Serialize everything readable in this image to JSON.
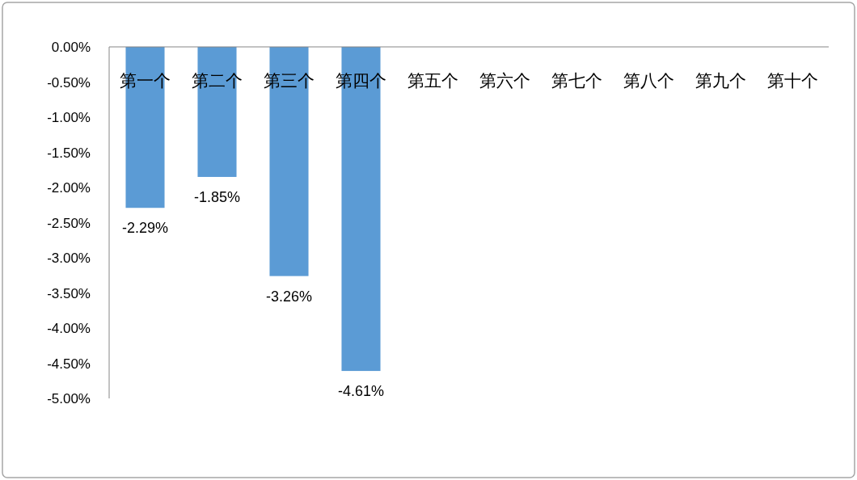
{
  "chart_data": {
    "type": "bar",
    "categories": [
      "第一个",
      "第二个",
      "第三个",
      "第四个",
      "第五个",
      "第六个",
      "第七个",
      "第八个",
      "第九个",
      "第十个"
    ],
    "values": [
      -2.29,
      -1.85,
      -3.26,
      -4.61,
      null,
      null,
      null,
      null,
      null,
      null
    ],
    "value_labels": [
      "-2.29%",
      "-1.85%",
      "-3.26%",
      "-4.61%",
      null,
      null,
      null,
      null,
      null,
      null
    ],
    "color": "#5b9bd5",
    "ylim": [
      -5,
      0
    ],
    "yticks": [
      {
        "value": 0,
        "label": "0.00%"
      },
      {
        "value": -0.5,
        "label": "-0.50%"
      },
      {
        "value": -1,
        "label": "-1.00%"
      },
      {
        "value": -1.5,
        "label": "-1.50%"
      },
      {
        "value": -2,
        "label": "-2.00%"
      },
      {
        "value": -2.5,
        "label": "-2.50%"
      },
      {
        "value": -3,
        "label": "-3.00%"
      },
      {
        "value": -3.5,
        "label": "-3.50%"
      },
      {
        "value": -4,
        "label": "-4.00%"
      },
      {
        "value": -4.5,
        "label": "-4.50%"
      },
      {
        "value": -5,
        "label": "-5.00%"
      }
    ]
  }
}
